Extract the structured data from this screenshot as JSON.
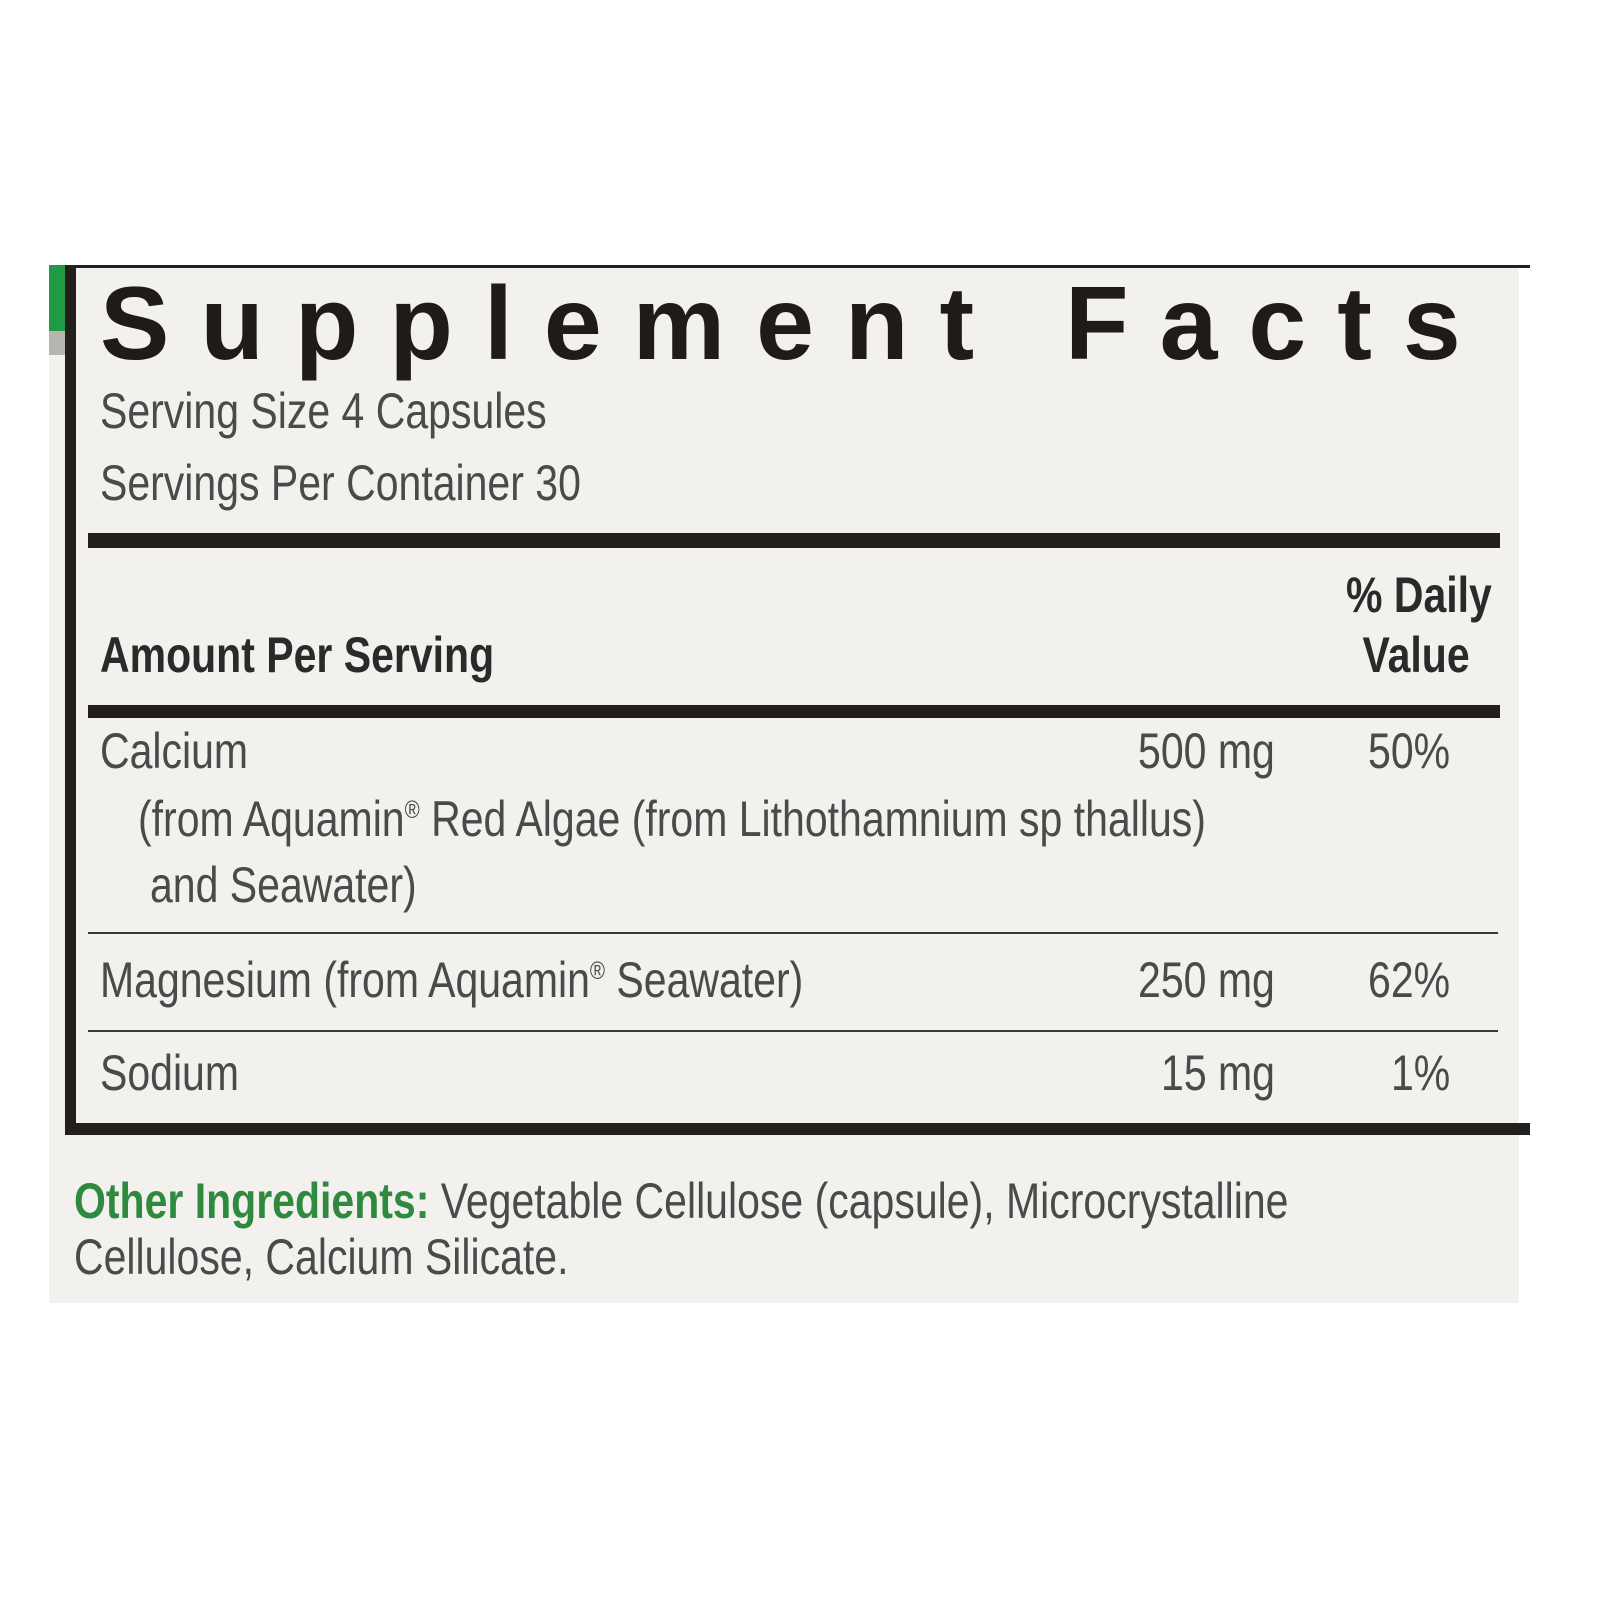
{
  "title": "Supplement Facts",
  "serving_size": "Serving Size 4 Capsules",
  "servings_per_container": "Servings Per Container 30",
  "header": {
    "amount_per_serving": "Amount Per Serving",
    "daily_value_1": "% Daily",
    "daily_value_2": "Value"
  },
  "rows": [
    {
      "name": "Calcium",
      "source_1": "(from Aquamin",
      "source_2": " Red Algae (from Lithothamnium sp thallus)",
      "source_3": "and Seawater)",
      "amount": "500 mg",
      "dv": "50%"
    },
    {
      "name": "Magnesium (from Aquamin",
      "name_2": " Seawater)",
      "amount": "250 mg",
      "dv": "62%"
    },
    {
      "name": "Sodium",
      "amount": "15 mg",
      "dv": "1%"
    }
  ],
  "reg": "®",
  "other_ingredients": {
    "label": "Other Ingredients:",
    "line_1": " Vegetable Cellulose (capsule), Microcrystalline",
    "line_2": "Cellulose, Calcium Silicate."
  },
  "colors": {
    "accent_green": "#1f9a45",
    "ingredients_green": "#2f8a3f",
    "text": "#4a4a4a",
    "border": "#231f1c",
    "background": "#f2f1ee"
  }
}
